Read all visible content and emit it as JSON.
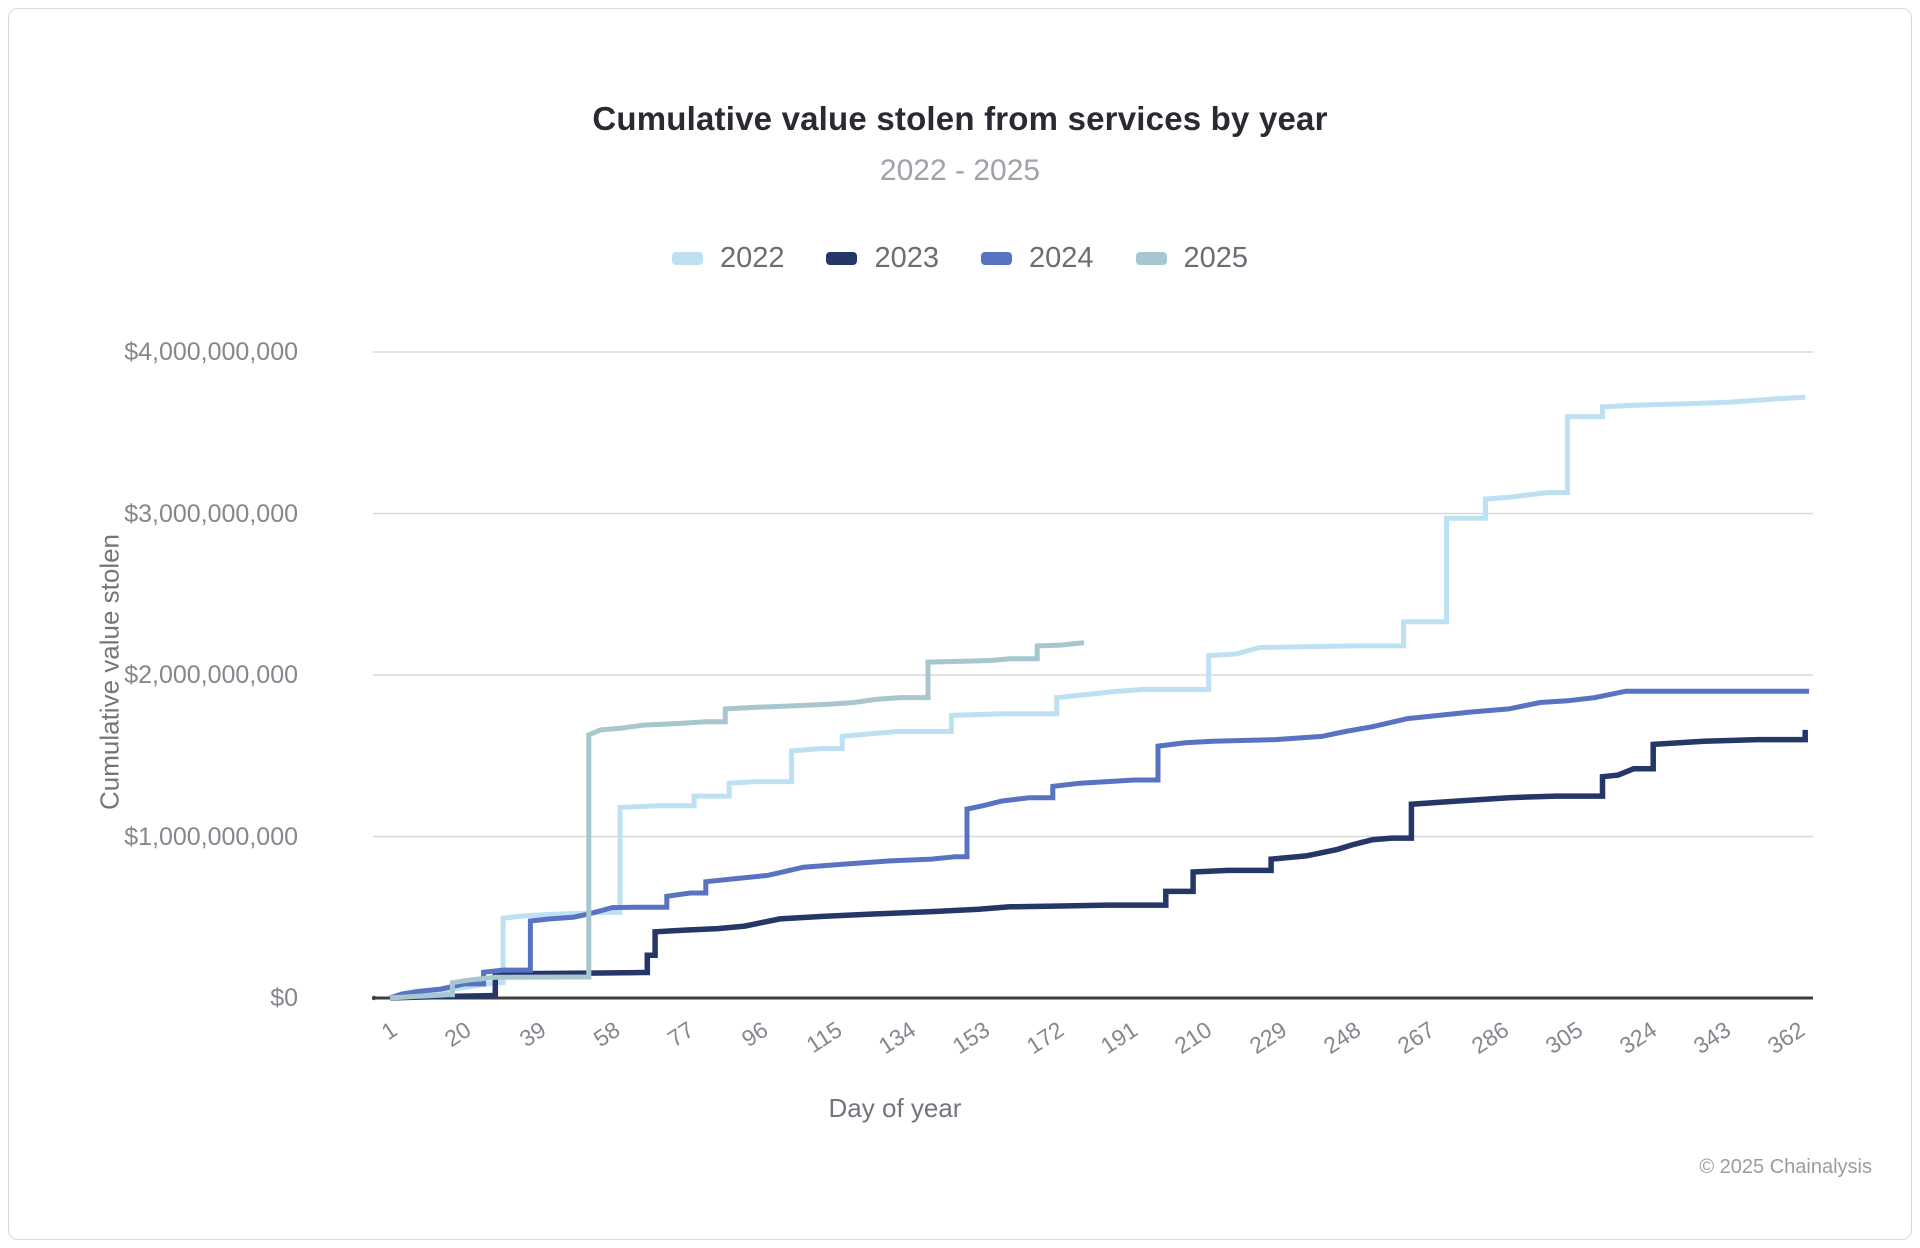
{
  "header": {
    "title": "Cumulative value stolen from services by year",
    "subtitle": "2022 - 2025"
  },
  "footer": {
    "copyright": "© 2025 Chainalysis"
  },
  "colors": {
    "series_2022": "#bde0f2",
    "series_2023": "#253767",
    "series_2024": "#5873c1",
    "series_2025": "#a7c6ce",
    "gridline": "#d9d9dd",
    "zero_axis": "#3e3e44",
    "title_text": "#2a2a32",
    "subtitle_text": "#a0a1a9",
    "tick_text": "#86868e",
    "axis_title_text": "#74747c",
    "legend_text": "#6c6c74",
    "footer_text": "#9b9ba3",
    "card_border": "#dbdbdf"
  },
  "chart_data": {
    "type": "line",
    "title": "Cumulative value stolen from services by year",
    "subtitle": "2022 - 2025",
    "xlabel": "Day of year",
    "ylabel": "Cumulative value stolen",
    "xlim": [
      1,
      366
    ],
    "ylim": [
      0,
      4000000000
    ],
    "x_ticks": [
      1,
      20,
      39,
      58,
      77,
      96,
      115,
      134,
      153,
      172,
      191,
      210,
      229,
      248,
      267,
      286,
      305,
      324,
      343,
      362
    ],
    "x_tick_rotation_deg": -33,
    "y_ticks": [
      0,
      1000000000,
      2000000000,
      3000000000,
      4000000000
    ],
    "y_tick_labels": [
      "$0",
      "$1,000,000,000",
      "$2,000,000,000",
      "$3,000,000,000",
      "$4,000,000,000"
    ],
    "grid": "horizontal",
    "legend_position": "top",
    "series": [
      {
        "name": "2022",
        "color": "#bde0f2",
        "points": [
          [
            1,
            0
          ],
          [
            4,
            12000000
          ],
          [
            8,
            22000000
          ],
          [
            12,
            33000000
          ],
          [
            16,
            50000000
          ],
          [
            20,
            65000000
          ],
          [
            24,
            80000000
          ],
          [
            27,
            90000000
          ],
          [
            29,
            95000000
          ],
          [
            30,
            495000000
          ],
          [
            36,
            510000000
          ],
          [
            45,
            520000000
          ],
          [
            56,
            530000000
          ],
          [
            60,
            1180000000
          ],
          [
            70,
            1190000000
          ],
          [
            79,
            1250000000
          ],
          [
            88,
            1330000000
          ],
          [
            95,
            1340000000
          ],
          [
            104,
            1530000000
          ],
          [
            112,
            1545000000
          ],
          [
            117,
            1620000000
          ],
          [
            124,
            1635000000
          ],
          [
            131,
            1650000000
          ],
          [
            145,
            1750000000
          ],
          [
            158,
            1760000000
          ],
          [
            172,
            1860000000
          ],
          [
            180,
            1880000000
          ],
          [
            188,
            1900000000
          ],
          [
            194,
            1910000000
          ],
          [
            211,
            2120000000
          ],
          [
            218,
            2130000000
          ],
          [
            224,
            2170000000
          ],
          [
            248,
            2180000000
          ],
          [
            261,
            2330000000
          ],
          [
            272,
            2970000000
          ],
          [
            282,
            3090000000
          ],
          [
            288,
            3100000000
          ],
          [
            298,
            3130000000
          ],
          [
            303,
            3600000000
          ],
          [
            312,
            3660000000
          ],
          [
            320,
            3670000000
          ],
          [
            334,
            3680000000
          ],
          [
            345,
            3690000000
          ],
          [
            357,
            3710000000
          ],
          [
            364,
            3720000000
          ]
        ]
      },
      {
        "name": "2023",
        "color": "#253767",
        "points": [
          [
            1,
            0
          ],
          [
            6,
            4000000
          ],
          [
            12,
            8000000
          ],
          [
            20,
            12000000
          ],
          [
            27,
            15000000
          ],
          [
            28,
            150000000
          ],
          [
            40,
            152000000
          ],
          [
            55,
            155000000
          ],
          [
            66,
            158000000
          ],
          [
            67,
            265000000
          ],
          [
            69,
            410000000
          ],
          [
            76,
            420000000
          ],
          [
            85,
            430000000
          ],
          [
            92,
            445000000
          ],
          [
            101,
            490000000
          ],
          [
            112,
            505000000
          ],
          [
            125,
            520000000
          ],
          [
            140,
            535000000
          ],
          [
            152,
            550000000
          ],
          [
            160,
            565000000
          ],
          [
            175,
            570000000
          ],
          [
            185,
            575000000
          ],
          [
            200,
            660000000
          ],
          [
            207,
            780000000
          ],
          [
            216,
            790000000
          ],
          [
            227,
            860000000
          ],
          [
            236,
            880000000
          ],
          [
            244,
            920000000
          ],
          [
            248,
            950000000
          ],
          [
            253,
            980000000
          ],
          [
            258,
            990000000
          ],
          [
            263,
            1200000000
          ],
          [
            275,
            1220000000
          ],
          [
            288,
            1240000000
          ],
          [
            300,
            1250000000
          ],
          [
            312,
            1370000000
          ],
          [
            316,
            1380000000
          ],
          [
            320,
            1420000000
          ],
          [
            325,
            1570000000
          ],
          [
            338,
            1590000000
          ],
          [
            352,
            1600000000
          ],
          [
            364,
            1660000000
          ]
        ]
      },
      {
        "name": "2024",
        "color": "#5873c1",
        "points": [
          [
            1,
            0
          ],
          [
            4,
            25000000
          ],
          [
            8,
            40000000
          ],
          [
            14,
            55000000
          ],
          [
            20,
            87000000
          ],
          [
            25,
            160000000
          ],
          [
            30,
            173000000
          ],
          [
            37,
            477000000
          ],
          [
            42,
            490000000
          ],
          [
            48,
            500000000
          ],
          [
            52,
            520000000
          ],
          [
            58,
            560000000
          ],
          [
            65,
            562000000
          ],
          [
            72,
            630000000
          ],
          [
            78,
            650000000
          ],
          [
            82,
            720000000
          ],
          [
            90,
            740000000
          ],
          [
            98,
            760000000
          ],
          [
            107,
            810000000
          ],
          [
            118,
            830000000
          ],
          [
            130,
            850000000
          ],
          [
            140,
            860000000
          ],
          [
            146,
            875000000
          ],
          [
            149,
            1170000000
          ],
          [
            153,
            1190000000
          ],
          [
            158,
            1220000000
          ],
          [
            165,
            1240000000
          ],
          [
            171,
            1310000000
          ],
          [
            178,
            1330000000
          ],
          [
            185,
            1340000000
          ],
          [
            192,
            1350000000
          ],
          [
            198,
            1560000000
          ],
          [
            205,
            1580000000
          ],
          [
            212,
            1590000000
          ],
          [
            228,
            1600000000
          ],
          [
            240,
            1620000000
          ],
          [
            246,
            1650000000
          ],
          [
            253,
            1680000000
          ],
          [
            262,
            1730000000
          ],
          [
            270,
            1750000000
          ],
          [
            278,
            1770000000
          ],
          [
            288,
            1790000000
          ],
          [
            296,
            1830000000
          ],
          [
            303,
            1840000000
          ],
          [
            310,
            1860000000
          ],
          [
            318,
            1900000000
          ],
          [
            365,
            1900000000
          ]
        ]
      },
      {
        "name": "2025",
        "color": "#a7c6ce",
        "points": [
          [
            1,
            0
          ],
          [
            6,
            8000000
          ],
          [
            11,
            14000000
          ],
          [
            16,
            20000000
          ],
          [
            17,
            95000000
          ],
          [
            21,
            110000000
          ],
          [
            28,
            128000000
          ],
          [
            51,
            130000000
          ],
          [
            52,
            1630000000
          ],
          [
            55,
            1660000000
          ],
          [
            60,
            1670000000
          ],
          [
            66,
            1690000000
          ],
          [
            75,
            1700000000
          ],
          [
            82,
            1710000000
          ],
          [
            87,
            1790000000
          ],
          [
            95,
            1800000000
          ],
          [
            105,
            1810000000
          ],
          [
            114,
            1820000000
          ],
          [
            120,
            1830000000
          ],
          [
            126,
            1850000000
          ],
          [
            132,
            1860000000
          ],
          [
            139,
            2080000000
          ],
          [
            148,
            2085000000
          ],
          [
            155,
            2090000000
          ],
          [
            160,
            2100000000
          ],
          [
            167,
            2180000000
          ],
          [
            173,
            2185000000
          ],
          [
            179,
            2200000000
          ]
        ]
      }
    ]
  }
}
